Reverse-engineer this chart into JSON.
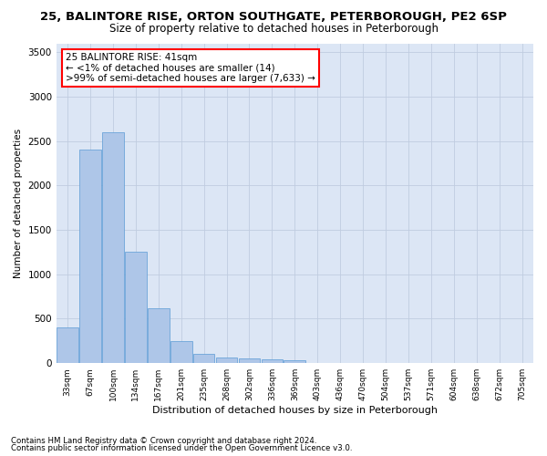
{
  "title_line1": "25, BALINTORE RISE, ORTON SOUTHGATE, PETERBOROUGH, PE2 6SP",
  "title_line2": "Size of property relative to detached houses in Peterborough",
  "xlabel": "Distribution of detached houses by size in Peterborough",
  "ylabel": "Number of detached properties",
  "footnote1": "Contains HM Land Registry data © Crown copyright and database right 2024.",
  "footnote2": "Contains public sector information licensed under the Open Government Licence v3.0.",
  "annotation_line1": "25 BALINTORE RISE: 41sqm",
  "annotation_line2": "← <1% of detached houses are smaller (14)",
  "annotation_line3": ">99% of semi-detached houses are larger (7,633) →",
  "categories": [
    "33sqm",
    "67sqm",
    "100sqm",
    "134sqm",
    "167sqm",
    "201sqm",
    "235sqm",
    "268sqm",
    "302sqm",
    "336sqm",
    "369sqm",
    "403sqm",
    "436sqm",
    "470sqm",
    "504sqm",
    "537sqm",
    "571sqm",
    "604sqm",
    "638sqm",
    "672sqm",
    "705sqm"
  ],
  "values": [
    400,
    2400,
    2600,
    1250,
    620,
    250,
    100,
    60,
    55,
    40,
    35,
    0,
    0,
    0,
    0,
    0,
    0,
    0,
    0,
    0,
    0
  ],
  "bar_color": "#aec6e8",
  "bar_edge_color": "#5b9bd5",
  "highlight_color": "#ff0000",
  "annotation_box_color": "#ff0000",
  "background_color": "#ffffff",
  "axes_bg_color": "#dce6f5",
  "grid_color": "#c0cce0",
  "ylim": [
    0,
    3600
  ],
  "yticks": [
    0,
    500,
    1000,
    1500,
    2000,
    2500,
    3000,
    3500
  ]
}
